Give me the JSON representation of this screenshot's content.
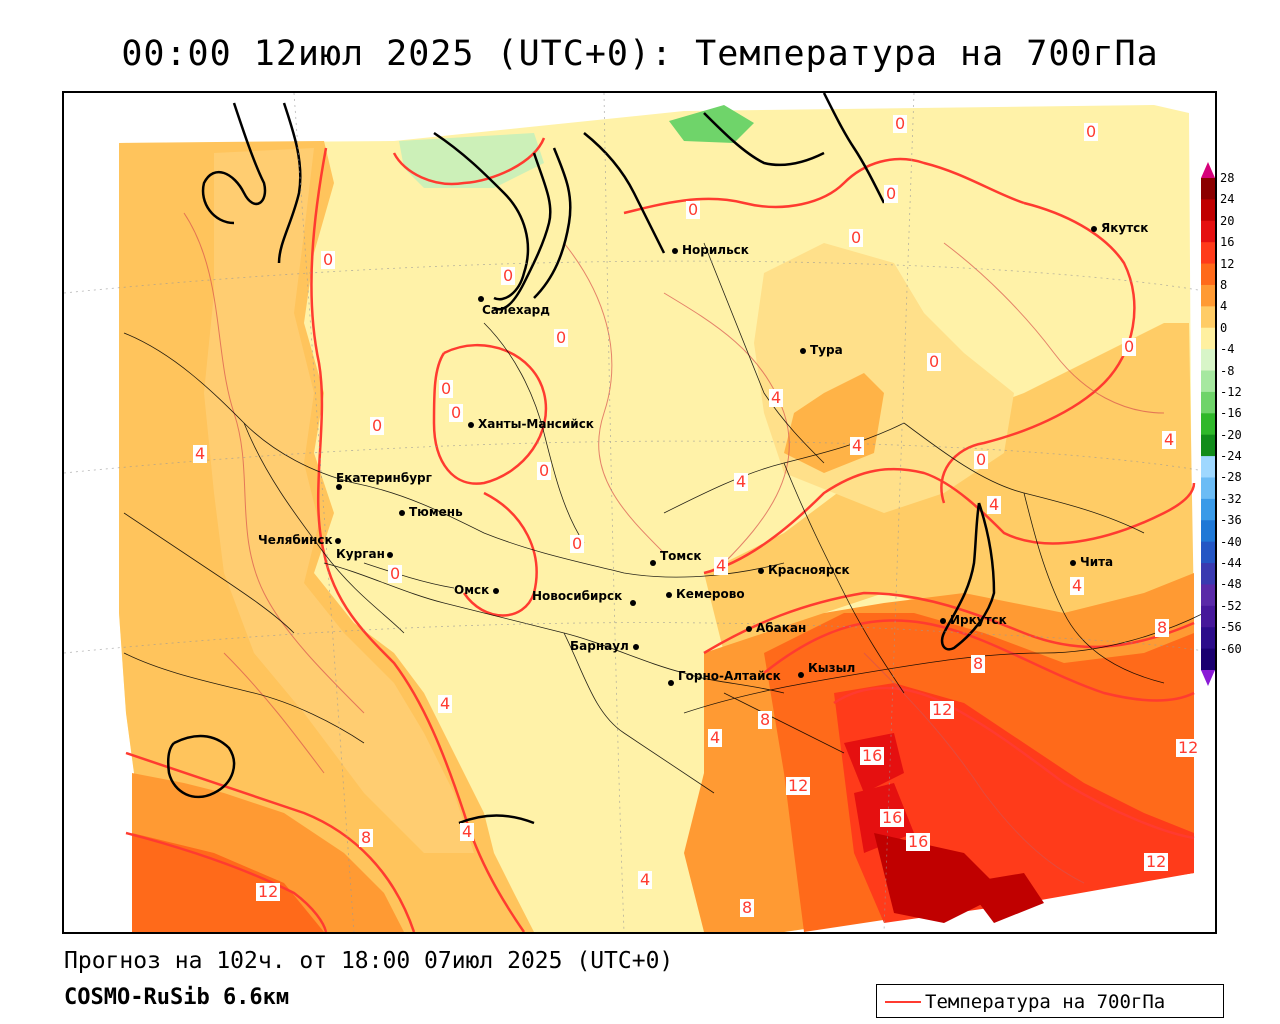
{
  "title": "00:00 12июл 2025 (UTC+0): Температура на 700гПа",
  "forecast_line": "Прогноз на 102ч. от 18:00 07июл 2025 (UTC+0)",
  "model_line": "COSMO-RuSib 6.6км",
  "legend": {
    "label": "Температура на 700гПа",
    "color": "#ff3b30"
  },
  "colorbar": {
    "levels": [
      "28",
      "24",
      "20",
      "16",
      "12",
      "8",
      "4",
      "0",
      "-4",
      "-8",
      "-12",
      "-16",
      "-20",
      "-24",
      "-28",
      "-32",
      "-36",
      "-40",
      "-44",
      "-48",
      "-52",
      "-56",
      "-60"
    ],
    "colors": [
      "#8b0000",
      "#c00000",
      "#e51010",
      "#ff3b1a",
      "#ff6a1a",
      "#ff9a33",
      "#ffcc66",
      "#fff0a0",
      "#d8f5c8",
      "#a6e8a0",
      "#6fd46a",
      "#2fb82a",
      "#118c1a",
      "#9fd8ff",
      "#6cbcf5",
      "#3a9ae8",
      "#1f78d6",
      "#2456c4",
      "#3a3ab0",
      "#5a2aa8",
      "#46189a",
      "#2c0c8a",
      "#1a0070"
    ],
    "top_color": "#d6007a",
    "bottom_color": "#8a1ad6"
  },
  "cities": [
    {
      "name": "Норильск"
    },
    {
      "name": "Якутск"
    },
    {
      "name": "Салехард"
    },
    {
      "name": "Тура"
    },
    {
      "name": "Ханты-Мансийск"
    },
    {
      "name": "Екатеринбург"
    },
    {
      "name": "Тюмень"
    },
    {
      "name": "Челябинск"
    },
    {
      "name": "Курган"
    },
    {
      "name": "Омск"
    },
    {
      "name": "Томск"
    },
    {
      "name": "Красноярск"
    },
    {
      "name": "Новосибирск"
    },
    {
      "name": "Кемерово"
    },
    {
      "name": "Абакан"
    },
    {
      "name": "Иркутск"
    },
    {
      "name": "Чита"
    },
    {
      "name": "Барнаул"
    },
    {
      "name": "Горно-Алтайск"
    },
    {
      "name": "Кызыл"
    }
  ],
  "isolines": [
    "0",
    "0",
    "0",
    "0",
    "0",
    "0",
    "0",
    "0",
    "0",
    "0",
    "0",
    "0",
    "0",
    "0",
    "0",
    "4",
    "4",
    "4",
    "4",
    "4",
    "4",
    "4",
    "4",
    "4",
    "4",
    "8",
    "8",
    "8",
    "8",
    "8",
    "8",
    "12",
    "12",
    "12",
    "12",
    "12",
    "16",
    "16",
    "16"
  ]
}
